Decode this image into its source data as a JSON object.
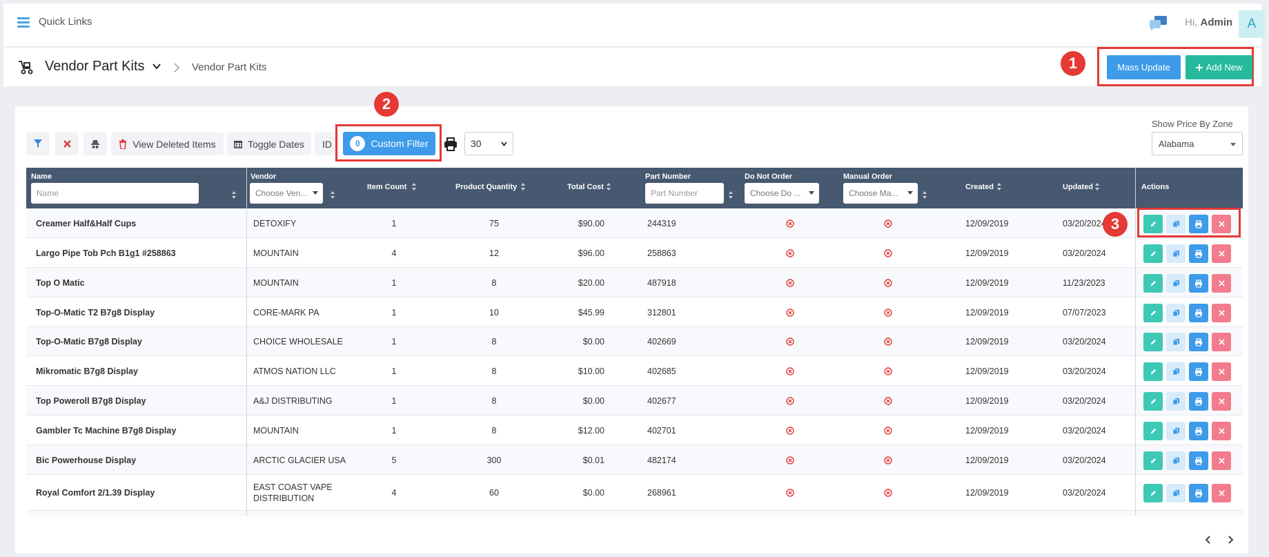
{
  "topbar": {
    "quick_links": "Quick Links",
    "greeting_prefix": "Hi,",
    "user": "Admin",
    "avatar_letter": "A"
  },
  "header": {
    "title": "Vendor Part Kits",
    "breadcrumb": "Vendor Part Kits",
    "mass_update_label": "Mass Update",
    "add_new_label": "Add New"
  },
  "annotations": {
    "one": "1",
    "two": "2",
    "three": "3"
  },
  "toolbar": {
    "view_deleted_label": "View Deleted Items",
    "toggle_dates_label": "Toggle Dates",
    "id_label": "ID",
    "custom_filter_count": "0",
    "custom_filter_label": "Custom Filter",
    "page_size": "30",
    "zone_label": "Show Price By Zone",
    "zone_value": "Alabama"
  },
  "columns": {
    "name": "Name",
    "name_placeholder": "Name",
    "vendor": "Vendor",
    "vendor_placeholder": "Choose Ven...",
    "item_count": "Item Count",
    "product_quantity": "Product Quantity",
    "total_cost": "Total Cost",
    "part_number": "Part Number",
    "part_number_placeholder": "Part Number",
    "do_not_order": "Do Not Order",
    "do_not_order_placeholder": "Choose Do ...",
    "manual_order": "Manual Order",
    "manual_order_placeholder": "Choose Ma...",
    "created": "Created",
    "updated": "Updated",
    "actions": "Actions"
  },
  "rows": [
    {
      "name": "Creamer Half&Half Cups",
      "vendor": "DETOXIFY",
      "item_count": "1",
      "product_quantity": "75",
      "total_cost": "$90.00",
      "part_number": "244319",
      "created": "12/09/2019",
      "updated": "03/20/2024"
    },
    {
      "name": "Largo Pipe Tob Pch B1g1 #258863",
      "vendor": "MOUNTAIN",
      "item_count": "4",
      "product_quantity": "12",
      "total_cost": "$96.00",
      "part_number": "258863",
      "created": "12/09/2019",
      "updated": "03/20/2024"
    },
    {
      "name": "Top O Matic",
      "vendor": "MOUNTAIN",
      "item_count": "1",
      "product_quantity": "8",
      "total_cost": "$20.00",
      "part_number": "487918",
      "created": "12/09/2019",
      "updated": "11/23/2023"
    },
    {
      "name": "Top-O-Matic T2 B7g8 Display",
      "vendor": "CORE-MARK PA",
      "item_count": "1",
      "product_quantity": "10",
      "total_cost": "$45.99",
      "part_number": "312801",
      "created": "12/09/2019",
      "updated": "07/07/2023"
    },
    {
      "name": "Top-O-Matic B7g8 Display",
      "vendor": "CHOICE WHOLESALE",
      "item_count": "1",
      "product_quantity": "8",
      "total_cost": "$0.00",
      "part_number": "402669",
      "created": "12/09/2019",
      "updated": "03/20/2024"
    },
    {
      "name": "Mikromatic B7g8 Display",
      "vendor": "ATMOS NATION LLC",
      "item_count": "1",
      "product_quantity": "8",
      "total_cost": "$10.00",
      "part_number": "402685",
      "created": "12/09/2019",
      "updated": "03/20/2024"
    },
    {
      "name": "Top Poweroll B7g8 Display",
      "vendor": "A&J DISTRIBUTING",
      "item_count": "1",
      "product_quantity": "8",
      "total_cost": "$0.00",
      "part_number": "402677",
      "created": "12/09/2019",
      "updated": "03/20/2024"
    },
    {
      "name": "Gambler Tc Machine B7g8 Display",
      "vendor": "MOUNTAIN",
      "item_count": "1",
      "product_quantity": "8",
      "total_cost": "$12.00",
      "part_number": "402701",
      "created": "12/09/2019",
      "updated": "03/20/2024"
    },
    {
      "name": "Bic Powerhouse Display",
      "vendor": "ARCTIC GLACIER USA",
      "item_count": "5",
      "product_quantity": "300",
      "total_cost": "$0.01",
      "part_number": "482174",
      "created": "12/09/2019",
      "updated": "03/20/2024"
    },
    {
      "name": "Royal Comfort 2/1.39 Display",
      "vendor": "EAST COAST VAPE",
      "vendor_line2": "DISTRIBUTION",
      "item_count": "4",
      "product_quantity": "60",
      "total_cost": "$0.00",
      "part_number": "268961",
      "created": "12/09/2019",
      "updated": "03/20/2024"
    }
  ]
}
